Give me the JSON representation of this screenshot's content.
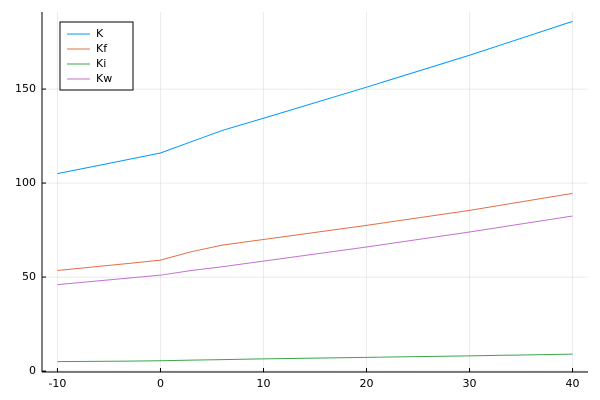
{
  "chart_data": {
    "type": "line",
    "x": [
      -10,
      -5,
      0,
      3,
      6,
      10,
      20,
      30,
      40
    ],
    "series": [
      {
        "name": "K",
        "color": "#009af9",
        "values": [
          105,
          110.5,
          116,
          122,
          128,
          134.5,
          151,
          168,
          186
        ]
      },
      {
        "name": "Kf",
        "color": "#e26f46",
        "values": [
          53.5,
          56.2,
          59,
          63.5,
          67,
          70,
          77.5,
          85.5,
          94.5
        ]
      },
      {
        "name": "Ki",
        "color": "#3da44d",
        "values": [
          5,
          5.2,
          5.5,
          5.8,
          6.1,
          6.5,
          7.3,
          8.1,
          9
        ]
      },
      {
        "name": "Kw",
        "color": "#c271d2",
        "values": [
          46,
          48.5,
          51,
          53.5,
          55.5,
          58.5,
          66,
          74,
          82.5
        ]
      }
    ],
    "xlim": [
      -11.5,
      41.5
    ],
    "xticks": [
      -10,
      0,
      10,
      20,
      30,
      40
    ],
    "ylim": [
      -0.5,
      191
    ],
    "yticks": [
      0,
      50,
      100,
      150
    ],
    "grid": true,
    "legend": "top-left"
  }
}
